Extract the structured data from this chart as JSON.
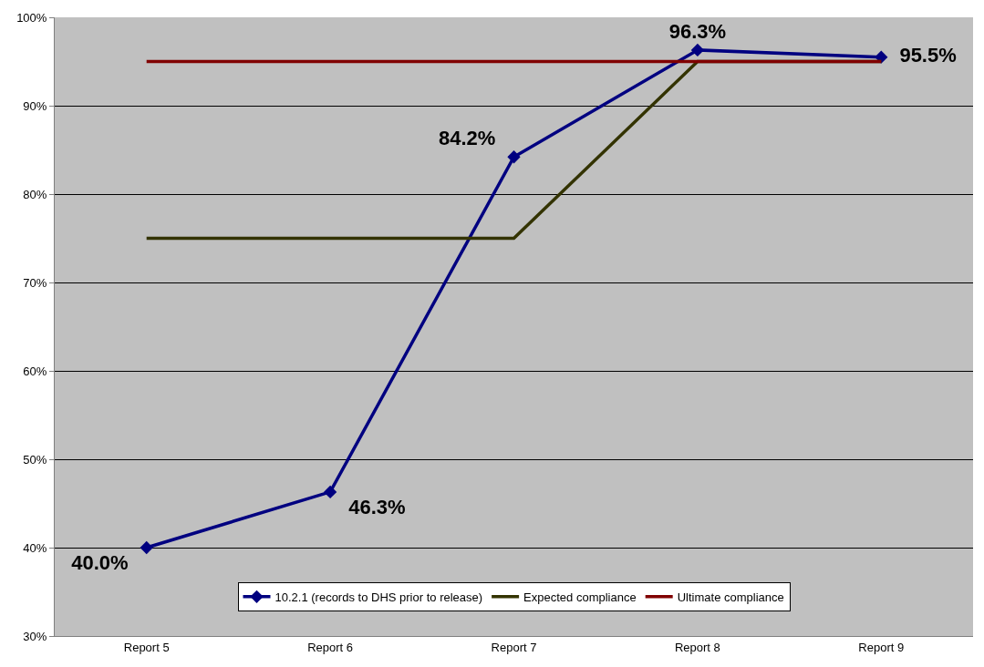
{
  "chart_data": {
    "type": "line",
    "categories": [
      "Report 5",
      "Report 6",
      "Report 7",
      "Report 8",
      "Report 9"
    ],
    "series": [
      {
        "name": "10.2.1 (records to DHS prior to release)",
        "color": "#000080",
        "marker": "diamond",
        "values": [
          40.0,
          46.3,
          84.2,
          96.3,
          95.5
        ],
        "value_labels": [
          "40.0%",
          "46.3%",
          "84.2%",
          "96.3%",
          "95.5%"
        ]
      },
      {
        "name": "Expected compliance",
        "color": "#333300",
        "marker": "none",
        "values": [
          75,
          75,
          75,
          95,
          95
        ]
      },
      {
        "name": "Ultimate compliance",
        "color": "#800000",
        "marker": "none",
        "values": [
          95,
          95,
          95,
          95,
          95
        ]
      }
    ],
    "ylim": [
      30,
      100
    ],
    "yticks": [
      {
        "value": 30,
        "label": "30%"
      },
      {
        "value": 40,
        "label": "40%"
      },
      {
        "value": 50,
        "label": "50%"
      },
      {
        "value": 60,
        "label": "60%"
      },
      {
        "value": 70,
        "label": "70%"
      },
      {
        "value": 80,
        "label": "80%"
      },
      {
        "value": 90,
        "label": "90%"
      },
      {
        "value": 100,
        "label": "100%"
      }
    ],
    "grid": "y",
    "legend": "bottom",
    "line_style": "solid"
  }
}
